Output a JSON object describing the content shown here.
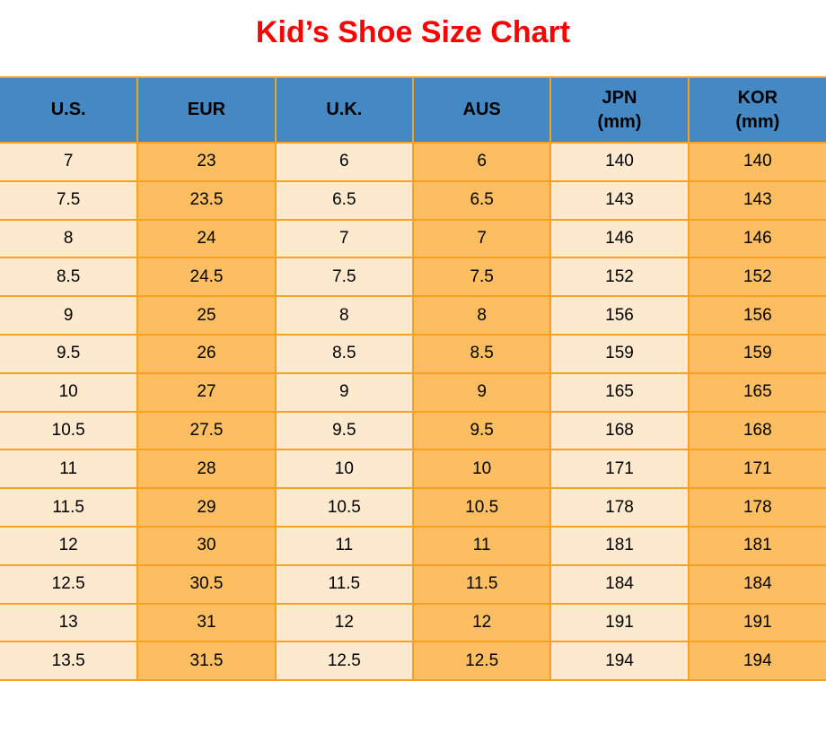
{
  "title": {
    "text": "Kid’s Shoe Size Chart",
    "color": "#FF0000"
  },
  "colors": {
    "header_bg": "#4489C4",
    "row_cream": "#FDE9CE",
    "row_orange": "#FDBE62",
    "grid_border": "#F6A21F",
    "title_red": "#FF0000",
    "text": "#000000"
  },
  "table": {
    "columns": [
      {
        "id": "us",
        "label": "U.S.",
        "unit": ""
      },
      {
        "id": "eur",
        "label": "EUR",
        "unit": ""
      },
      {
        "id": "uk",
        "label": "U.K.",
        "unit": ""
      },
      {
        "id": "aus",
        "label": "AUS",
        "unit": ""
      },
      {
        "id": "jpn",
        "label": "JPN",
        "unit": "(mm)"
      },
      {
        "id": "kor",
        "label": "KOR",
        "unit": "(mm)"
      }
    ],
    "rows": [
      [
        "7",
        "23",
        "6",
        "6",
        "140",
        "140"
      ],
      [
        "7.5",
        "23.5",
        "6.5",
        "6.5",
        "143",
        "143"
      ],
      [
        "8",
        "24",
        "7",
        "7",
        "146",
        "146"
      ],
      [
        "8.5",
        "24.5",
        "7.5",
        "7.5",
        "152",
        "152"
      ],
      [
        "9",
        "25",
        "8",
        "8",
        "156",
        "156"
      ],
      [
        "9.5",
        "26",
        "8.5",
        "8.5",
        "159",
        "159"
      ],
      [
        "10",
        "27",
        "9",
        "9",
        "165",
        "165"
      ],
      [
        "10.5",
        "27.5",
        "9.5",
        "9.5",
        "168",
        "168"
      ],
      [
        "11",
        "28",
        "10",
        "10",
        "171",
        "171"
      ],
      [
        "11.5",
        "29",
        "10.5",
        "10.5",
        "178",
        "178"
      ],
      [
        "12",
        "30",
        "11",
        "11",
        "181",
        "181"
      ],
      [
        "12.5",
        "30.5",
        "11.5",
        "11.5",
        "184",
        "184"
      ],
      [
        "13",
        "31",
        "12",
        "12",
        "191",
        "191"
      ],
      [
        "13.5",
        "31.5",
        "12.5",
        "12.5",
        "194",
        "194"
      ]
    ]
  },
  "chart_data": {
    "type": "table",
    "title": "Kid’s Shoe Size Chart",
    "columns": [
      "U.S.",
      "EUR",
      "U.K.",
      "AUS",
      "JPN (mm)",
      "KOR (mm)"
    ],
    "rows": [
      [
        7,
        23,
        6,
        6,
        140,
        140
      ],
      [
        7.5,
        23.5,
        6.5,
        6.5,
        143,
        143
      ],
      [
        8,
        24,
        7,
        7,
        146,
        146
      ],
      [
        8.5,
        24.5,
        7.5,
        7.5,
        152,
        152
      ],
      [
        9,
        25,
        8,
        8,
        156,
        156
      ],
      [
        9.5,
        26,
        8.5,
        8.5,
        159,
        159
      ],
      [
        10,
        27,
        9,
        9,
        165,
        165
      ],
      [
        10.5,
        27.5,
        9.5,
        9.5,
        168,
        168
      ],
      [
        11,
        28,
        10,
        10,
        171,
        171
      ],
      [
        11.5,
        29,
        10.5,
        10.5,
        178,
        178
      ],
      [
        12,
        30,
        11,
        11,
        181,
        181
      ],
      [
        12.5,
        30.5,
        11.5,
        11.5,
        184,
        184
      ],
      [
        13,
        31,
        12,
        12,
        191,
        191
      ],
      [
        13.5,
        31.5,
        12.5,
        12.5,
        194,
        194
      ]
    ],
    "column_fill_pattern": [
      "cream",
      "orange",
      "cream",
      "orange",
      "cream",
      "orange"
    ],
    "layout": {
      "header_bg": "#4489C4",
      "grid": "on",
      "title_position": "top-center"
    }
  }
}
